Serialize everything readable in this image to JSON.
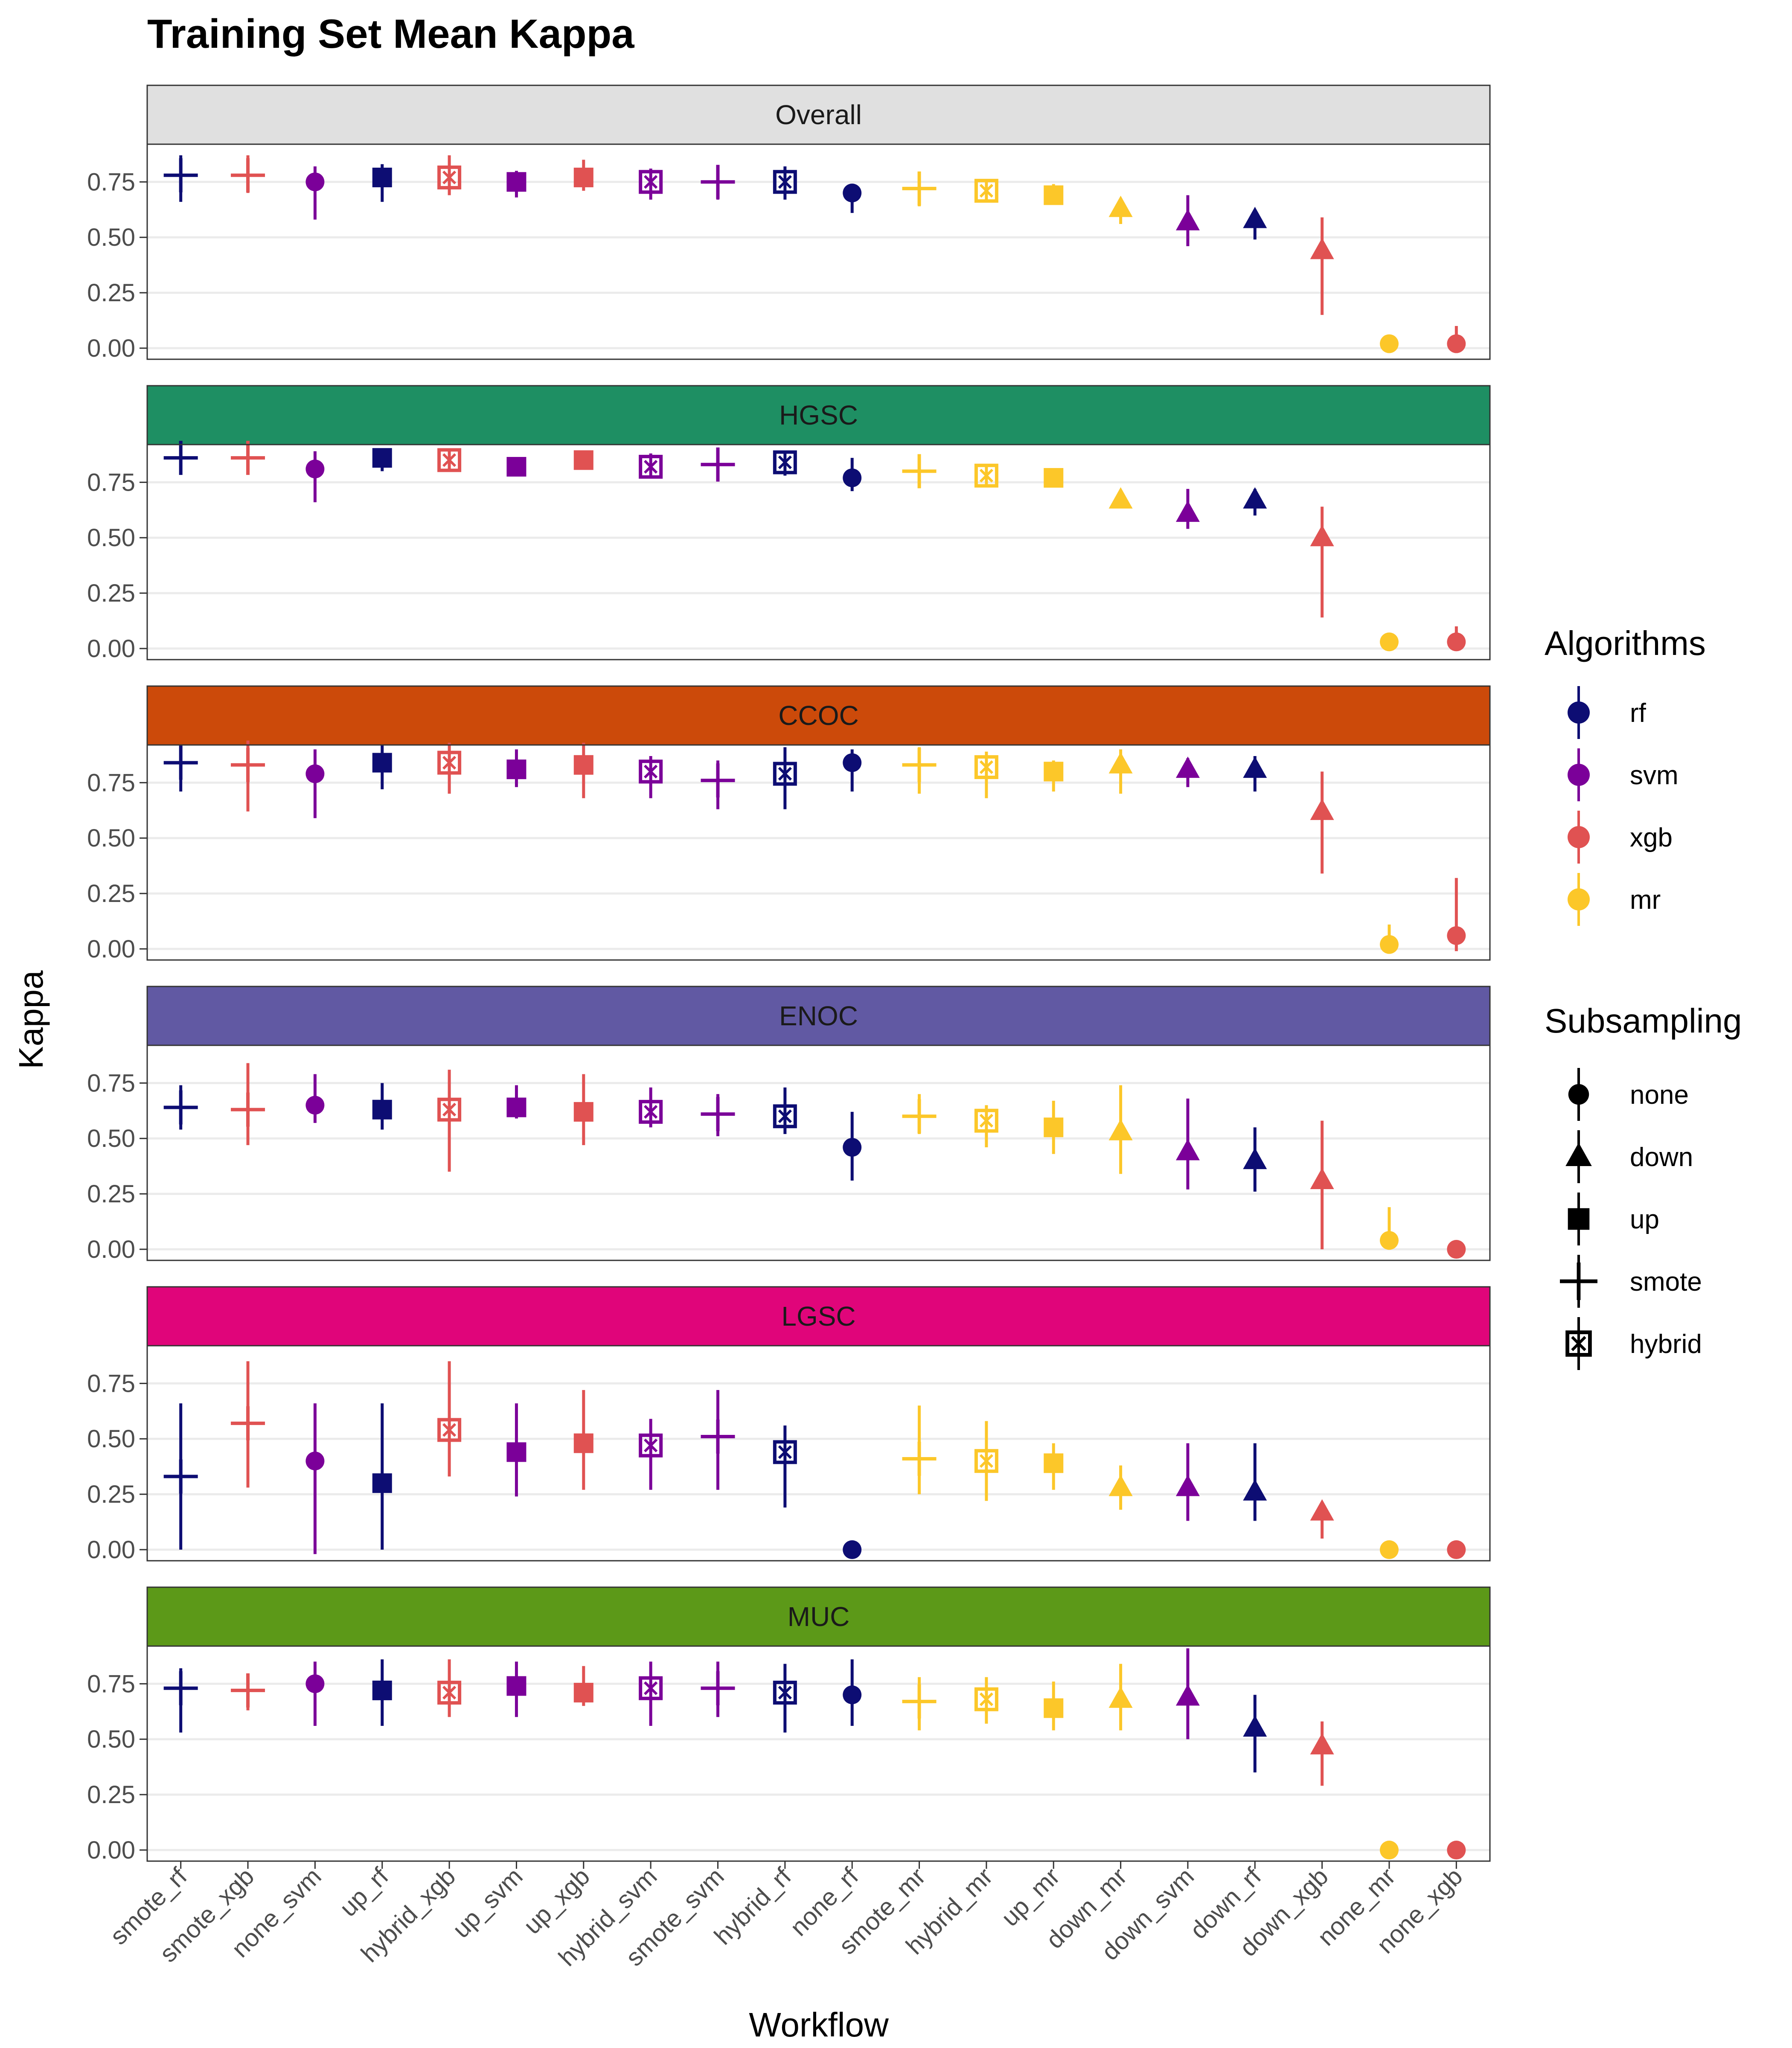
{
  "chart_data": {
    "type": "scatter",
    "title": "Training Set Mean Kappa",
    "xlabel": "Workflow",
    "ylabel": "Kappa",
    "ylim": [
      -0.05,
      0.92
    ],
    "yticks": [
      "0.00",
      "0.25",
      "0.50",
      "0.75"
    ],
    "ytick_values": [
      0,
      0.25,
      0.5,
      0.75
    ],
    "grid": true,
    "legend_position": "right",
    "categories": [
      "smote_rf",
      "smote_xgb",
      "none_svm",
      "up_rf",
      "hybrid_xgb",
      "up_svm",
      "up_xgb",
      "hybrid_svm",
      "smote_svm",
      "hybrid_rf",
      "none_rf",
      "smote_mr",
      "hybrid_mr",
      "up_mr",
      "down_mr",
      "down_svm",
      "down_rf",
      "down_xgb",
      "none_mr",
      "none_xgb"
    ],
    "algorithm_colors": {
      "rf": "#0d0d73",
      "svm": "#7b0099",
      "xgb": "#e05252",
      "mr": "#fcc729"
    },
    "legend": {
      "algorithms_title": "Algorithms",
      "algorithms": [
        {
          "label": "rf",
          "color": "#0d0d73"
        },
        {
          "label": "svm",
          "color": "#7b0099"
        },
        {
          "label": "xgb",
          "color": "#e05252"
        },
        {
          "label": "mr",
          "color": "#fcc729"
        }
      ],
      "subsampling_title": "Subsampling",
      "subsampling": [
        {
          "label": "none",
          "shape": "circle"
        },
        {
          "label": "down",
          "shape": "triangle"
        },
        {
          "label": "up",
          "shape": "square"
        },
        {
          "label": "smote",
          "shape": "plus"
        },
        {
          "label": "hybrid",
          "shape": "hybrid"
        }
      ]
    },
    "panels": [
      {
        "name": "Overall",
        "strip_color": "#e0e0e0",
        "mean": [
          0.78,
          0.78,
          0.75,
          0.77,
          0.77,
          0.75,
          0.77,
          0.75,
          0.75,
          0.75,
          0.7,
          0.72,
          0.71,
          0.69,
          0.63,
          0.57,
          0.58,
          0.44,
          0.02,
          0.02
        ],
        "lower": [
          0.66,
          0.7,
          0.58,
          0.66,
          0.69,
          0.68,
          0.71,
          0.67,
          0.67,
          0.67,
          0.61,
          0.64,
          0.67,
          0.67,
          0.56,
          0.46,
          0.49,
          0.15,
          0.0,
          0.0
        ],
        "upper": [
          0.87,
          0.87,
          0.82,
          0.83,
          0.87,
          0.8,
          0.85,
          0.81,
          0.82,
          0.82,
          0.72,
          0.78,
          0.76,
          0.74,
          0.67,
          0.69,
          0.62,
          0.59,
          0.03,
          0.1
        ]
      },
      {
        "name": "HGSC",
        "strip_color": "#1e8f63",
        "mean": [
          0.86,
          0.86,
          0.81,
          0.86,
          0.85,
          0.82,
          0.85,
          0.82,
          0.83,
          0.84,
          0.77,
          0.8,
          0.78,
          0.77,
          0.67,
          0.61,
          0.67,
          0.5,
          0.03,
          0.03
        ],
        "lower": [
          0.79,
          0.79,
          0.66,
          0.8,
          0.81,
          0.81,
          0.83,
          0.78,
          0.76,
          0.78,
          0.71,
          0.74,
          0.73,
          0.75,
          0.64,
          0.54,
          0.6,
          0.14,
          0.0,
          0.0
        ],
        "upper": [
          0.92,
          0.92,
          0.89,
          0.9,
          0.9,
          0.84,
          0.87,
          0.88,
          0.9,
          0.89,
          0.86,
          0.86,
          0.83,
          0.79,
          0.7,
          0.72,
          0.72,
          0.64,
          0.05,
          0.1
        ]
      },
      {
        "name": "CCOC",
        "strip_color": "#cc4a0a",
        "mean": [
          0.84,
          0.83,
          0.79,
          0.84,
          0.84,
          0.81,
          0.83,
          0.8,
          0.76,
          0.79,
          0.84,
          0.83,
          0.82,
          0.8,
          0.83,
          0.81,
          0.81,
          0.62,
          0.02,
          0.06
        ],
        "lower": [
          0.71,
          0.62,
          0.59,
          0.72,
          0.7,
          0.73,
          0.68,
          0.68,
          0.63,
          0.63,
          0.71,
          0.7,
          0.68,
          0.71,
          0.7,
          0.73,
          0.71,
          0.34,
          0.0,
          -0.01
        ],
        "upper": [
          0.92,
          0.94,
          0.9,
          0.92,
          0.93,
          0.9,
          0.93,
          0.87,
          0.85,
          0.91,
          0.9,
          0.91,
          0.89,
          0.85,
          0.9,
          0.86,
          0.87,
          0.8,
          0.11,
          0.32
        ]
      },
      {
        "name": "ENOC",
        "strip_color": "#6159a3",
        "mean": [
          0.64,
          0.63,
          0.65,
          0.63,
          0.63,
          0.64,
          0.62,
          0.62,
          0.61,
          0.6,
          0.46,
          0.6,
          0.58,
          0.55,
          0.53,
          0.44,
          0.4,
          0.31,
          0.04,
          0.0
        ],
        "lower": [
          0.54,
          0.47,
          0.57,
          0.54,
          0.35,
          0.59,
          0.47,
          0.55,
          0.51,
          0.52,
          0.31,
          0.52,
          0.46,
          0.43,
          0.34,
          0.27,
          0.26,
          0.0,
          0.0,
          0.0
        ],
        "upper": [
          0.74,
          0.84,
          0.79,
          0.75,
          0.81,
          0.74,
          0.79,
          0.73,
          0.7,
          0.73,
          0.62,
          0.7,
          0.65,
          0.67,
          0.74,
          0.68,
          0.55,
          0.58,
          0.19,
          0.0
        ]
      },
      {
        "name": "LGSC",
        "strip_color": "#e0057a",
        "mean": [
          0.33,
          0.57,
          0.4,
          0.3,
          0.54,
          0.44,
          0.48,
          0.47,
          0.51,
          0.44,
          0.0,
          0.41,
          0.4,
          0.39,
          0.28,
          0.28,
          0.26,
          0.17,
          0.0,
          0.0
        ],
        "lower": [
          0.0,
          0.28,
          -0.02,
          0.0,
          0.33,
          0.24,
          0.27,
          0.27,
          0.27,
          0.19,
          0.0,
          0.25,
          0.22,
          0.27,
          0.18,
          0.13,
          0.13,
          0.05,
          0.0,
          0.0
        ],
        "upper": [
          0.66,
          0.85,
          0.66,
          0.66,
          0.85,
          0.66,
          0.72,
          0.59,
          0.72,
          0.56,
          0.0,
          0.65,
          0.58,
          0.48,
          0.38,
          0.48,
          0.48,
          0.2,
          0.0,
          0.0
        ]
      },
      {
        "name": "MUC",
        "strip_color": "#5c9918",
        "mean": [
          0.73,
          0.72,
          0.75,
          0.72,
          0.71,
          0.74,
          0.71,
          0.73,
          0.73,
          0.71,
          0.7,
          0.67,
          0.68,
          0.64,
          0.68,
          0.69,
          0.55,
          0.47,
          0.0,
          0.0
        ],
        "lower": [
          0.53,
          0.63,
          0.56,
          0.56,
          0.6,
          0.6,
          0.65,
          0.56,
          0.6,
          0.53,
          0.56,
          0.54,
          0.57,
          0.54,
          0.54,
          0.5,
          0.35,
          0.29,
          0.0,
          0.0
        ],
        "upper": [
          0.82,
          0.77,
          0.85,
          0.86,
          0.86,
          0.85,
          0.83,
          0.85,
          0.85,
          0.84,
          0.86,
          0.78,
          0.78,
          0.76,
          0.84,
          0.91,
          0.7,
          0.58,
          0.0,
          0.0
        ]
      }
    ]
  }
}
